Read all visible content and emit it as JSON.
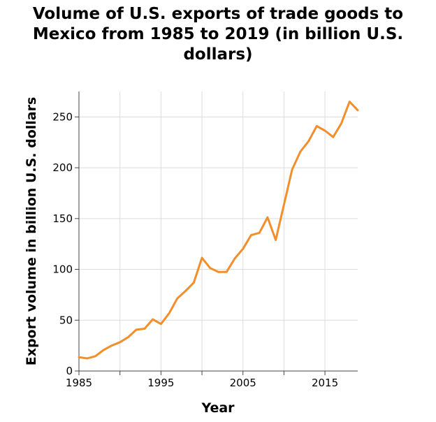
{
  "chart_data": {
    "type": "line",
    "title": "Volume of U.S. exports of trade goods to Mexico from 1985 to 2019 (in billion U.S. dollars)",
    "xlabel": "Year",
    "ylabel": "Export volume in billion U.S. dollars",
    "xlim": [
      1985,
      2019
    ],
    "ylim": [
      0,
      275
    ],
    "x_ticks": [
      1985,
      1995,
      2005,
      2015
    ],
    "y_ticks": [
      0,
      50,
      100,
      150,
      200,
      250
    ],
    "grid": true,
    "line_color": "#f28e2b",
    "series": [
      {
        "x": [
          1985,
          1986,
          1987,
          1988,
          1989,
          1990,
          1991,
          1992,
          1993,
          1994,
          1995,
          1996,
          1997,
          1998,
          1999,
          2000,
          2001,
          2002,
          2003,
          2004,
          2005,
          2006,
          2007,
          2008,
          2009,
          2010,
          2011,
          2012,
          2013,
          2014,
          2015,
          2016,
          2017,
          2018,
          2019
        ],
        "values": [
          13.6,
          12.4,
          14.6,
          20.6,
          25.0,
          28.3,
          33.3,
          40.6,
          41.6,
          50.8,
          46.3,
          56.8,
          71.4,
          78.8,
          86.9,
          111.3,
          101.3,
          97.5,
          97.4,
          110.7,
          120.2,
          133.7,
          135.9,
          151.2,
          128.9,
          163.7,
          198.3,
          215.9,
          226.1,
          241.0,
          236.5,
          230.2,
          243.6,
          265.0,
          256.6
        ]
      }
    ]
  }
}
